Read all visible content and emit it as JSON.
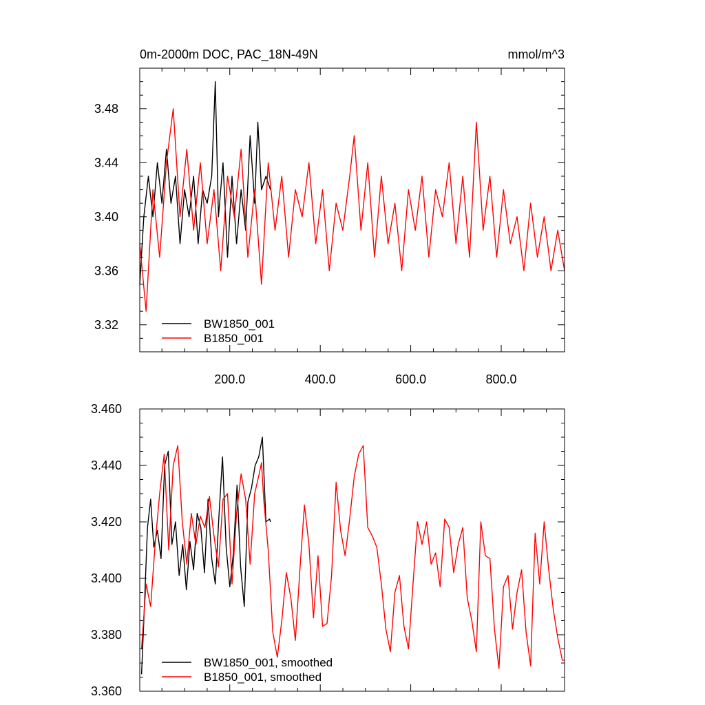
{
  "chart_data": [
    {
      "type": "line",
      "title_left": "0m-2000m DOC, PAC_18N-49N",
      "title_right": "mmol/m^3",
      "xlim": [
        1,
        940
      ],
      "ylim": [
        3.3,
        3.51
      ],
      "x_ticks": [
        200,
        400,
        600,
        800
      ],
      "x_tick_labels": [
        "200.0",
        "400.0",
        "600.0",
        "800.0"
      ],
      "y_ticks": [
        3.32,
        3.36,
        3.4,
        3.44,
        3.48
      ],
      "y_tick_labels": [
        "3.32",
        "3.36",
        "3.40",
        "3.44",
        "3.48"
      ],
      "legend_position": "bottom-left",
      "series": [
        {
          "name": "BW1850_001",
          "color": "#000000",
          "x": [
            1,
            10,
            20,
            30,
            40,
            50,
            60,
            70,
            80,
            90,
            100,
            110,
            120,
            130,
            140,
            150,
            160,
            168,
            175,
            185,
            195,
            205,
            215,
            225,
            235,
            245,
            255,
            262,
            270,
            280,
            290
          ],
          "values": [
            3.35,
            3.4,
            3.43,
            3.4,
            3.44,
            3.41,
            3.45,
            3.41,
            3.43,
            3.38,
            3.42,
            3.4,
            3.43,
            3.38,
            3.42,
            3.41,
            3.43,
            3.5,
            3.4,
            3.44,
            3.37,
            3.43,
            3.38,
            3.42,
            3.39,
            3.46,
            3.41,
            3.47,
            3.42,
            3.43,
            3.42
          ]
        },
        {
          "name": "B1850_001",
          "color": "#ff0000",
          "x": [
            1,
            15,
            30,
            45,
            60,
            75,
            90,
            105,
            120,
            135,
            150,
            165,
            180,
            195,
            210,
            225,
            240,
            255,
            270,
            285,
            300,
            315,
            330,
            345,
            360,
            375,
            390,
            405,
            420,
            435,
            450,
            465,
            475,
            490,
            505,
            520,
            535,
            550,
            565,
            580,
            595,
            610,
            625,
            640,
            655,
            670,
            685,
            700,
            715,
            730,
            745,
            760,
            775,
            790,
            805,
            820,
            835,
            850,
            865,
            880,
            895,
            910,
            925,
            940
          ],
          "values": [
            3.38,
            3.33,
            3.42,
            3.37,
            3.44,
            3.48,
            3.4,
            3.45,
            3.39,
            3.44,
            3.38,
            3.42,
            3.36,
            3.43,
            3.4,
            3.45,
            3.37,
            3.42,
            3.35,
            3.44,
            3.39,
            3.43,
            3.37,
            3.42,
            3.4,
            3.44,
            3.38,
            3.42,
            3.36,
            3.41,
            3.39,
            3.43,
            3.46,
            3.39,
            3.44,
            3.37,
            3.43,
            3.38,
            3.41,
            3.36,
            3.42,
            3.39,
            3.43,
            3.37,
            3.42,
            3.4,
            3.44,
            3.38,
            3.43,
            3.37,
            3.47,
            3.39,
            3.43,
            3.37,
            3.42,
            3.38,
            3.4,
            3.36,
            3.41,
            3.37,
            3.4,
            3.36,
            3.39,
            3.36
          ]
        }
      ]
    },
    {
      "type": "line",
      "xlim": [
        1,
        940
      ],
      "ylim": [
        3.36,
        3.46
      ],
      "x_ticks": [
        200,
        400,
        600,
        800
      ],
      "y_ticks": [
        3.36,
        3.38,
        3.4,
        3.42,
        3.44,
        3.46
      ],
      "y_tick_labels": [
        "3.360",
        "3.380",
        "3.400",
        "3.420",
        "3.440",
        "3.460"
      ],
      "legend_position": "bottom-left",
      "series": [
        {
          "name": "BW1850_001, smoothed",
          "color": "#000000",
          "x": [
            5,
            10,
            18,
            25,
            32,
            40,
            48,
            56,
            64,
            72,
            80,
            88,
            96,
            104,
            112,
            120,
            128,
            136,
            144,
            152,
            160,
            168,
            176,
            184,
            192,
            200,
            208,
            216,
            224,
            232,
            240,
            248,
            256,
            264,
            272,
            280,
            288,
            290
          ],
          "values": [
            3.366,
            3.385,
            3.418,
            3.428,
            3.411,
            3.417,
            3.407,
            3.44,
            3.445,
            3.412,
            3.42,
            3.401,
            3.412,
            3.396,
            3.413,
            3.403,
            3.423,
            3.418,
            3.402,
            3.428,
            3.407,
            3.398,
            3.422,
            3.443,
            3.411,
            3.397,
            3.409,
            3.433,
            3.404,
            3.39,
            3.427,
            3.432,
            3.44,
            3.443,
            3.45,
            3.42,
            3.421,
            3.42
          ]
        },
        {
          "name": "B1850_001, smoothed",
          "color": "#ff0000",
          "x": [
            5,
            15,
            25,
            35,
            45,
            55,
            65,
            75,
            85,
            95,
            105,
            115,
            125,
            135,
            145,
            155,
            165,
            175,
            185,
            195,
            205,
            215,
            225,
            235,
            245,
            255,
            265,
            270,
            275,
            285,
            295,
            305,
            315,
            325,
            335,
            345,
            355,
            365,
            375,
            385,
            395,
            405,
            415,
            425,
            435,
            445,
            455,
            465,
            475,
            485,
            495,
            505,
            515,
            525,
            535,
            545,
            555,
            565,
            575,
            585,
            595,
            605,
            615,
            625,
            635,
            645,
            655,
            665,
            675,
            685,
            695,
            705,
            715,
            725,
            735,
            745,
            755,
            765,
            775,
            785,
            795,
            805,
            815,
            825,
            835,
            845,
            855,
            865,
            875,
            885,
            895,
            905,
            915,
            925,
            935,
            940
          ],
          "values": [
            3.375,
            3.398,
            3.39,
            3.412,
            3.43,
            3.444,
            3.41,
            3.44,
            3.447,
            3.42,
            3.405,
            3.423,
            3.412,
            3.422,
            3.418,
            3.429,
            3.415,
            3.404,
            3.428,
            3.43,
            3.398,
            3.423,
            3.437,
            3.428,
            3.405,
            3.43,
            3.437,
            3.441,
            3.428,
            3.41,
            3.381,
            3.372,
            3.385,
            3.402,
            3.393,
            3.378,
            3.403,
            3.426,
            3.412,
            3.386,
            3.408,
            3.383,
            3.384,
            3.401,
            3.434,
            3.417,
            3.408,
            3.421,
            3.436,
            3.444,
            3.447,
            3.418,
            3.415,
            3.411,
            3.398,
            3.382,
            3.374,
            3.395,
            3.401,
            3.383,
            3.375,
            3.398,
            3.42,
            3.412,
            3.42,
            3.405,
            3.409,
            3.397,
            3.421,
            3.418,
            3.402,
            3.412,
            3.418,
            3.393,
            3.385,
            3.374,
            3.42,
            3.408,
            3.407,
            3.382,
            3.368,
            3.397,
            3.401,
            3.382,
            3.395,
            3.403,
            3.381,
            3.369,
            3.416,
            3.398,
            3.42,
            3.403,
            3.389,
            3.379,
            3.371,
            3.371
          ]
        }
      ]
    }
  ]
}
